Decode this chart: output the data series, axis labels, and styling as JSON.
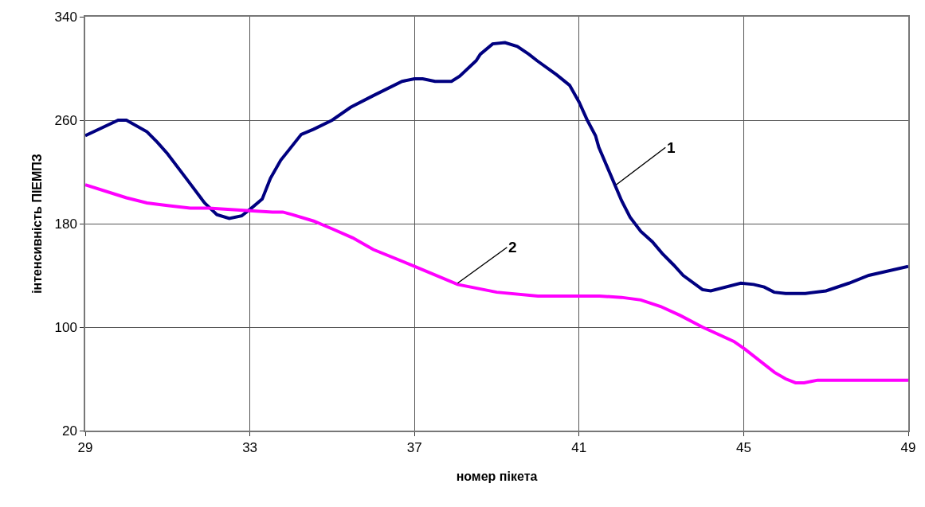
{
  "chart_data": {
    "type": "line",
    "xlabel": "номер пікета",
    "ylabel": "інтенсивність ПІЕМПЗ",
    "xlim": [
      29,
      49
    ],
    "xticks": [
      29,
      33,
      37,
      41,
      45,
      49
    ],
    "ylim": [
      20,
      340
    ],
    "yticks": [
      20,
      100,
      180,
      260,
      340
    ],
    "grid": true,
    "line_style": "solid",
    "series": [
      {
        "color": "#000080",
        "x": [
          29,
          29.8,
          30.0,
          30.5,
          30.75,
          31.0,
          31.5,
          31.9,
          32.2,
          32.5,
          32.8,
          33.0,
          33.3,
          33.5,
          33.75,
          33.95,
          34.25,
          34.55,
          35.0,
          35.45,
          36.0,
          36.7,
          37.0,
          37.2,
          37.5,
          37.9,
          38.1,
          38.5,
          38.6,
          38.9,
          39.2,
          39.5,
          39.78,
          39.98,
          40.46,
          40.77,
          41.0,
          41.2,
          41.4,
          41.48,
          41.83,
          42.03,
          42.24,
          42.5,
          42.78,
          43.02,
          43.3,
          43.53,
          44.0,
          44.2,
          44.93,
          45.24,
          45.5,
          45.74,
          46.02,
          46.5,
          47.0,
          47.56,
          48.04,
          49.0
        ],
        "values": [
          248,
          260,
          260,
          251,
          243,
          234,
          213,
          196,
          187,
          184,
          186,
          191,
          199,
          215,
          229,
          237,
          249,
          253,
          260,
          270,
          279,
          290,
          292,
          292,
          290,
          290,
          294,
          306,
          311,
          319,
          320,
          317,
          311,
          306,
          295,
          287,
          274,
          260,
          248,
          239,
          213,
          198,
          185,
          174,
          166,
          157,
          148,
          140,
          129,
          128,
          134,
          133,
          131,
          127,
          126,
          126,
          128,
          134,
          140,
          147
        ]
      },
      {
        "color": "#ff00ff",
        "x": [
          29,
          30.0,
          30.5,
          31.0,
          31.55,
          32.0,
          33.0,
          33.55,
          33.8,
          34.03,
          34.55,
          35.0,
          35.5,
          36.0,
          37.0,
          38.05,
          39.0,
          40.0,
          41.5,
          42.03,
          42.5,
          42.98,
          43.46,
          44.0,
          44.76,
          45.03,
          45.75,
          46.02,
          46.26,
          46.47,
          46.8,
          48.03,
          49.0
        ],
        "values": [
          210,
          200,
          196,
          194,
          192,
          192,
          190,
          189,
          189,
          187,
          182,
          176,
          169,
          160,
          147,
          133,
          127,
          124,
          124,
          123,
          121,
          116,
          109,
          100,
          89,
          83,
          65,
          60,
          57,
          57,
          59,
          59,
          59
        ]
      }
    ],
    "annotations": [
      {
        "text": "1",
        "x": 41.9,
        "y": 210
      },
      {
        "text": "2",
        "x": 38.05,
        "y": 134
      }
    ]
  }
}
